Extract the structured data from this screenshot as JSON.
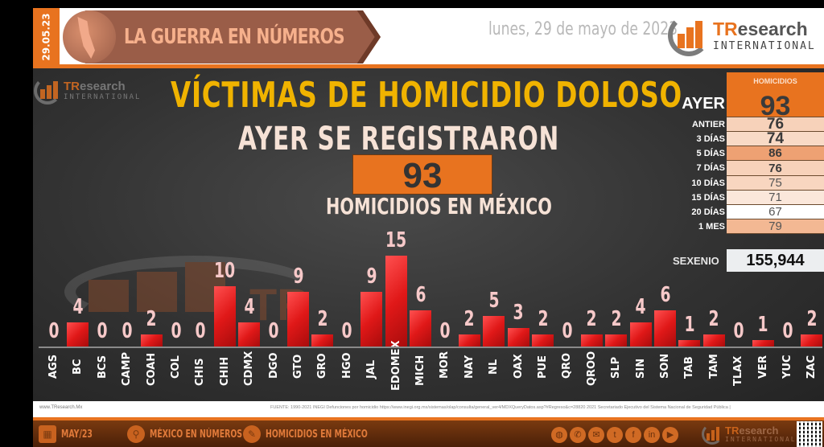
{
  "header": {
    "date_tab": "29.05.23",
    "banner_title": "LA GUERRA EN NÚMEROS",
    "date_text": "lunes, 29 de mayo de 2023",
    "logo": {
      "line1_accent": "TR",
      "line1_rest": "esearch",
      "line2": "INTERNATIONAL"
    }
  },
  "main": {
    "title": "VÍCTIMAS DE HOMICIDIO DOLOSO",
    "subtitle": "AYER SE REGISTRARON",
    "big_number": "93",
    "subtitle2": "HOMICIDIOS EN MÉXICO",
    "watermark_logo": {
      "line1_accent": "TR",
      "line1_rest": "esearch",
      "line2": "INTERNATIONAL"
    }
  },
  "summary_table": {
    "header": "HOMICIDIOS",
    "rows": [
      {
        "label": "AYER",
        "value": "93",
        "bg": "#e8731f"
      },
      {
        "label": "ANTIER",
        "value": "76",
        "bg": "#f7d2ba"
      },
      {
        "label": "3 DÍAS",
        "value": "74",
        "bg": "#f8dac6"
      },
      {
        "label": "5 DÍAS",
        "value": "86",
        "bg": "#eea173"
      },
      {
        "label": "7 DÍAS",
        "value": "76",
        "bg": "#f7d2ba"
      },
      {
        "label": "10 DÍAS",
        "value": "75",
        "bg": "#f8d6c0"
      },
      {
        "label": "15 DÍAS",
        "value": "71",
        "bg": "#fbe7da"
      },
      {
        "label": "20 DÍAS",
        "value": "67",
        "bg": "#ffffff"
      },
      {
        "label": "1 MES",
        "value": "79",
        "bg": "#f3b893"
      }
    ],
    "sexenio_label": "SEXENIO",
    "sexenio_value": "155,944"
  },
  "chart_data": {
    "type": "bar",
    "title": "VÍCTIMAS DE HOMICIDIO DOLOSO",
    "xlabel": "",
    "ylabel": "",
    "grid": false,
    "ylim": [
      0,
      15
    ],
    "categories": [
      "AGS",
      "BC",
      "BCS",
      "CAMP",
      "COAH",
      "COL",
      "CHIS",
      "CHIH",
      "CDMX",
      "DGO",
      "GTO",
      "GRO",
      "HGO",
      "JAL",
      "EDOMEX",
      "MICH",
      "MOR",
      "NAY",
      "NL",
      "OAX",
      "PUE",
      "QRO",
      "QROO",
      "SLP",
      "SIN",
      "SON",
      "TAB",
      "TAM",
      "TLAX",
      "VER",
      "YUC",
      "ZAC"
    ],
    "values": [
      0,
      4,
      0,
      0,
      2,
      0,
      0,
      10,
      4,
      0,
      9,
      2,
      0,
      9,
      15,
      6,
      0,
      2,
      5,
      3,
      2,
      0,
      2,
      2,
      4,
      6,
      1,
      2,
      0,
      1,
      0,
      2
    ],
    "bar_color": "#e01818",
    "value_label_color": "#f7c9c9"
  },
  "footer": {
    "site": "www.TResearch.Mx",
    "source": "FUENTE: 1990-2021 INEGI Defunciones por homicidio https://www.inegi.org.mx/sistemas/olap/consulta/general_ver4/MDXQueryDatos.asp?#Regreso&c=28820  2021 Secretariado Ejecutivo del Sistema Nacional de Seguridad Pública |"
  },
  "bottom_bar": {
    "items": [
      {
        "icon": "calendar-icon",
        "label": "MAY/23"
      },
      {
        "icon": "map-pin-icon",
        "label": "MÉXICO EN NÚMEROS"
      },
      {
        "icon": "chat-bubble-icon",
        "label": "HOMICIDIOS EN MÉXICO"
      }
    ],
    "social": [
      "globe-icon",
      "phone-icon",
      "email-icon",
      "twitter-icon",
      "facebook-icon",
      "linkedin-icon",
      "youtube-icon"
    ],
    "logo": {
      "line1_accent": "TR",
      "line1_rest": "esearch",
      "line2": "INTERNATIONAL"
    }
  },
  "colors": {
    "accent": "#e8731f",
    "title_yellow": "#f0b300",
    "panel_bg": "#323232"
  }
}
